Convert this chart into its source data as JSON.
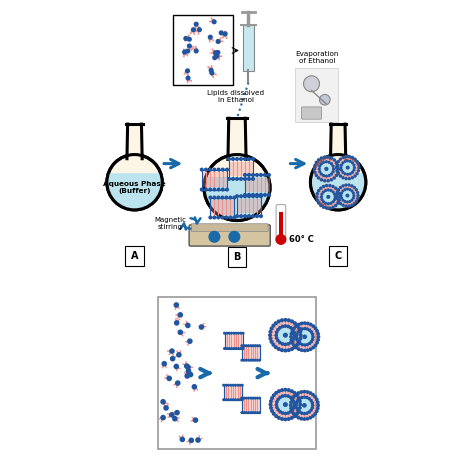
{
  "background_color": "#ffffff",
  "flask_fill": "#fdf5e6",
  "flask_liquid": "#b8e4f0",
  "arrow_color": "#1a6aaa",
  "lipid_head_color": "#2055a0",
  "lipid_tail_color": "#f0908a",
  "label_A": "A",
  "label_B": "B",
  "label_C": "C",
  "text_aqueous": "Aqueous Phase\n(Buffer)",
  "text_lipids": "Lipids dissolved\nin Ethanol",
  "text_magnetic": "Magnetic\nstirring",
  "text_temp": "60° C",
  "text_evap": "Evaporation\nof Ethanol",
  "hotplate_color": "#c8b89a",
  "hotplate_device_color": "#d4c5a0",
  "temp_red": "#cc0000",
  "bottom_panel_border": "#999999",
  "liposome_inner": "#b8e4f0",
  "liposome_center": "#2055a0"
}
